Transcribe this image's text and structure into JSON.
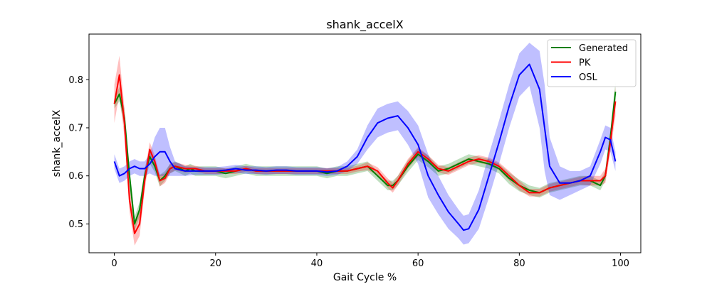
{
  "chart_data": {
    "type": "line",
    "title": "shank_accelX",
    "xlabel": "Gait Cycle %",
    "ylabel": "shank_accelX",
    "xlim": [
      -5,
      104
    ],
    "ylim": [
      0.44,
      0.895
    ],
    "xticks": [
      0,
      20,
      40,
      60,
      80,
      100
    ],
    "yticks": [
      0.5,
      0.6,
      0.7,
      0.8
    ],
    "xtick_labels": [
      "0",
      "20",
      "40",
      "60",
      "80",
      "100"
    ],
    "ytick_labels": [
      "0.5",
      "0.6",
      "0.7",
      "0.8"
    ],
    "grid": false,
    "legend_position": "top-right",
    "series": [
      {
        "name": "Generated",
        "color": "#008000",
        "x": [
          0,
          1,
          2,
          3,
          4,
          5,
          6,
          7,
          8,
          9,
          10,
          11,
          12,
          13,
          14,
          15,
          16,
          18,
          20,
          22,
          24,
          26,
          28,
          30,
          32,
          34,
          36,
          38,
          40,
          42,
          44,
          46,
          48,
          50,
          52,
          54,
          55,
          56,
          58,
          60,
          62,
          64,
          66,
          68,
          70,
          72,
          74,
          76,
          78,
          80,
          82,
          84,
          86,
          88,
          90,
          92,
          94,
          96,
          97,
          98,
          99
        ],
        "values": [
          0.75,
          0.77,
          0.72,
          0.6,
          0.5,
          0.53,
          0.6,
          0.64,
          0.62,
          0.59,
          0.6,
          0.615,
          0.62,
          0.615,
          0.61,
          0.615,
          0.61,
          0.61,
          0.61,
          0.605,
          0.61,
          0.615,
          0.61,
          0.61,
          0.61,
          0.61,
          0.61,
          0.61,
          0.61,
          0.605,
          0.61,
          0.61,
          0.615,
          0.62,
          0.6,
          0.58,
          0.58,
          0.59,
          0.62,
          0.645,
          0.63,
          0.61,
          0.615,
          0.625,
          0.635,
          0.63,
          0.625,
          0.615,
          0.595,
          0.58,
          0.57,
          0.565,
          0.575,
          0.58,
          0.585,
          0.59,
          0.59,
          0.58,
          0.6,
          0.68,
          0.775
        ],
        "band": [
          0.01,
          0.015,
          0.02,
          0.02,
          0.015,
          0.015,
          0.015,
          0.015,
          0.012,
          0.012,
          0.01,
          0.01,
          0.01,
          0.01,
          0.01,
          0.01,
          0.01,
          0.01,
          0.01,
          0.01,
          0.01,
          0.01,
          0.01,
          0.01,
          0.01,
          0.01,
          0.01,
          0.01,
          0.01,
          0.01,
          0.01,
          0.01,
          0.01,
          0.01,
          0.01,
          0.01,
          0.01,
          0.01,
          0.012,
          0.012,
          0.012,
          0.01,
          0.01,
          0.01,
          0.01,
          0.01,
          0.01,
          0.01,
          0.012,
          0.012,
          0.01,
          0.01,
          0.01,
          0.01,
          0.01,
          0.01,
          0.01,
          0.01,
          0.01,
          0.015,
          0.02
        ]
      },
      {
        "name": "PK",
        "color": "#ff0000",
        "x": [
          0,
          1,
          2,
          3,
          4,
          5,
          6,
          7,
          8,
          9,
          10,
          11,
          12,
          14,
          16,
          18,
          20,
          22,
          24,
          26,
          28,
          30,
          32,
          34,
          36,
          38,
          40,
          42,
          44,
          46,
          48,
          50,
          52,
          54,
          55,
          56,
          58,
          60,
          62,
          64,
          66,
          68,
          70,
          72,
          74,
          76,
          78,
          80,
          82,
          84,
          86,
          88,
          90,
          92,
          94,
          96,
          97,
          98,
          99
        ],
        "values": [
          0.75,
          0.81,
          0.71,
          0.55,
          0.48,
          0.5,
          0.59,
          0.655,
          0.63,
          0.59,
          0.595,
          0.615,
          0.62,
          0.615,
          0.615,
          0.61,
          0.61,
          0.61,
          0.61,
          0.615,
          0.61,
          0.61,
          0.61,
          0.61,
          0.61,
          0.61,
          0.61,
          0.61,
          0.61,
          0.61,
          0.615,
          0.62,
          0.61,
          0.585,
          0.575,
          0.59,
          0.625,
          0.65,
          0.635,
          0.615,
          0.61,
          0.62,
          0.63,
          0.635,
          0.63,
          0.62,
          0.6,
          0.58,
          0.565,
          0.565,
          0.575,
          0.58,
          0.585,
          0.59,
          0.59,
          0.59,
          0.6,
          0.67,
          0.755
        ],
        "band": [
          0.04,
          0.04,
          0.03,
          0.025,
          0.025,
          0.025,
          0.02,
          0.015,
          0.012,
          0.012,
          0.01,
          0.01,
          0.008,
          0.008,
          0.006,
          0.006,
          0.006,
          0.006,
          0.006,
          0.006,
          0.006,
          0.006,
          0.006,
          0.006,
          0.006,
          0.006,
          0.006,
          0.006,
          0.006,
          0.006,
          0.006,
          0.008,
          0.008,
          0.01,
          0.01,
          0.01,
          0.01,
          0.01,
          0.008,
          0.008,
          0.008,
          0.008,
          0.008,
          0.008,
          0.008,
          0.008,
          0.01,
          0.01,
          0.008,
          0.008,
          0.008,
          0.008,
          0.008,
          0.008,
          0.01,
          0.01,
          0.015,
          0.02,
          0.03
        ]
      },
      {
        "name": "OSL",
        "color": "#0000ff",
        "x": [
          0,
          1,
          2,
          3,
          4,
          5,
          6,
          7,
          8,
          9,
          10,
          11,
          12,
          14,
          16,
          18,
          20,
          22,
          24,
          26,
          28,
          30,
          32,
          34,
          36,
          38,
          40,
          42,
          44,
          46,
          48,
          50,
          52,
          54,
          56,
          58,
          60,
          62,
          64,
          66,
          68,
          69,
          70,
          72,
          74,
          76,
          78,
          80,
          82,
          84,
          85,
          86,
          88,
          90,
          92,
          94,
          96,
          97,
          98,
          99
        ],
        "values": [
          0.63,
          0.6,
          0.605,
          0.615,
          0.62,
          0.615,
          0.615,
          0.625,
          0.64,
          0.65,
          0.65,
          0.63,
          0.615,
          0.61,
          0.61,
          0.61,
          0.61,
          0.612,
          0.615,
          0.612,
          0.612,
          0.61,
          0.612,
          0.612,
          0.61,
          0.61,
          0.61,
          0.608,
          0.61,
          0.62,
          0.64,
          0.68,
          0.71,
          0.72,
          0.725,
          0.7,
          0.665,
          0.6,
          0.56,
          0.525,
          0.5,
          0.487,
          0.49,
          0.53,
          0.6,
          0.67,
          0.745,
          0.81,
          0.832,
          0.78,
          0.7,
          0.62,
          0.585,
          0.585,
          0.59,
          0.6,
          0.65,
          0.68,
          0.675,
          0.63
        ],
        "band": [
          0.015,
          0.015,
          0.015,
          0.015,
          0.015,
          0.015,
          0.015,
          0.02,
          0.04,
          0.05,
          0.05,
          0.03,
          0.015,
          0.01,
          0.008,
          0.008,
          0.008,
          0.008,
          0.008,
          0.008,
          0.008,
          0.008,
          0.008,
          0.008,
          0.008,
          0.008,
          0.008,
          0.008,
          0.008,
          0.01,
          0.015,
          0.025,
          0.03,
          0.03,
          0.03,
          0.035,
          0.04,
          0.045,
          0.04,
          0.035,
          0.03,
          0.03,
          0.03,
          0.04,
          0.045,
          0.045,
          0.045,
          0.045,
          0.045,
          0.08,
          0.09,
          0.06,
          0.035,
          0.025,
          0.02,
          0.02,
          0.025,
          0.025,
          0.025,
          0.02
        ]
      }
    ]
  }
}
